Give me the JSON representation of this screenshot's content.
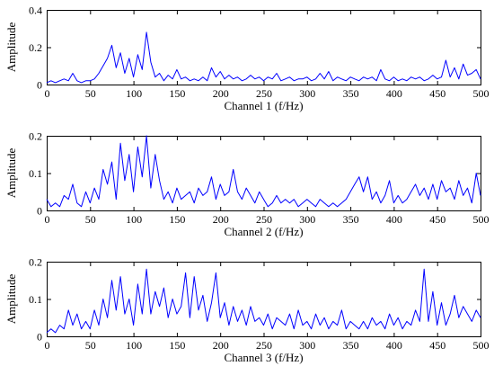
{
  "chart_data": [
    {
      "type": "line",
      "xlabel": "Channel 1 (f/Hz)",
      "ylabel": "Amplitude",
      "xlim": [
        0,
        500
      ],
      "ylim": [
        0,
        0.4
      ],
      "xticks": [
        0,
        50,
        100,
        150,
        200,
        250,
        300,
        350,
        400,
        450,
        500
      ],
      "yticks": [
        0,
        0.2,
        0.4
      ],
      "xtick_labels": [
        "0",
        "50",
        "100",
        "150",
        "200",
        "250",
        "300",
        "350",
        "400",
        "450",
        "500"
      ],
      "ytick_labels": [
        "0",
        "0.2",
        "0.4"
      ],
      "line_color": "#0000ff",
      "series": [
        {
          "x": [
            0,
            5,
            10,
            15,
            20,
            25,
            30,
            35,
            40,
            45,
            50,
            55,
            60,
            65,
            70,
            75,
            80,
            85,
            90,
            95,
            100,
            105,
            110,
            115,
            120,
            125,
            130,
            135,
            140,
            145,
            150,
            155,
            160,
            165,
            170,
            175,
            180,
            185,
            190,
            195,
            200,
            205,
            210,
            215,
            220,
            225,
            230,
            235,
            240,
            245,
            250,
            255,
            260,
            265,
            270,
            275,
            280,
            285,
            290,
            295,
            300,
            305,
            310,
            315,
            320,
            325,
            330,
            335,
            340,
            345,
            350,
            355,
            360,
            365,
            370,
            375,
            380,
            385,
            390,
            395,
            400,
            405,
            410,
            415,
            420,
            425,
            430,
            435,
            440,
            445,
            450,
            455,
            460,
            465,
            470,
            475,
            480,
            485,
            490,
            495,
            500
          ],
          "values": [
            0.01,
            0.02,
            0.01,
            0.02,
            0.03,
            0.02,
            0.06,
            0.02,
            0.01,
            0.02,
            0.02,
            0.03,
            0.06,
            0.1,
            0.14,
            0.21,
            0.09,
            0.17,
            0.06,
            0.14,
            0.04,
            0.16,
            0.08,
            0.28,
            0.12,
            0.04,
            0.06,
            0.02,
            0.05,
            0.03,
            0.08,
            0.03,
            0.04,
            0.02,
            0.03,
            0.02,
            0.04,
            0.02,
            0.09,
            0.04,
            0.07,
            0.03,
            0.05,
            0.03,
            0.04,
            0.02,
            0.03,
            0.05,
            0.03,
            0.04,
            0.02,
            0.04,
            0.03,
            0.06,
            0.02,
            0.03,
            0.04,
            0.02,
            0.03,
            0.03,
            0.04,
            0.02,
            0.03,
            0.06,
            0.03,
            0.07,
            0.02,
            0.04,
            0.03,
            0.02,
            0.04,
            0.03,
            0.02,
            0.04,
            0.03,
            0.04,
            0.02,
            0.08,
            0.03,
            0.02,
            0.04,
            0.02,
            0.03,
            0.02,
            0.04,
            0.03,
            0.04,
            0.02,
            0.03,
            0.05,
            0.03,
            0.04,
            0.13,
            0.04,
            0.09,
            0.03,
            0.11,
            0.05,
            0.06,
            0.08,
            0.03
          ]
        }
      ]
    },
    {
      "type": "line",
      "xlabel": "Channel 2 (f/Hz)",
      "ylabel": "Amplitude",
      "xlim": [
        0,
        500
      ],
      "ylim": [
        0,
        0.2
      ],
      "xticks": [
        0,
        50,
        100,
        150,
        200,
        250,
        300,
        350,
        400,
        450,
        500
      ],
      "yticks": [
        0,
        0.1,
        0.2
      ],
      "xtick_labels": [
        "0",
        "50",
        "100",
        "150",
        "200",
        "250",
        "300",
        "350",
        "400",
        "450",
        "500"
      ],
      "ytick_labels": [
        "0",
        "0.1",
        "0.2"
      ],
      "line_color": "#0000ff",
      "series": [
        {
          "x": [
            0,
            5,
            10,
            15,
            20,
            25,
            30,
            35,
            40,
            45,
            50,
            55,
            60,
            65,
            70,
            75,
            80,
            85,
            90,
            95,
            100,
            105,
            110,
            115,
            120,
            125,
            130,
            135,
            140,
            145,
            150,
            155,
            160,
            165,
            170,
            175,
            180,
            185,
            190,
            195,
            200,
            205,
            210,
            215,
            220,
            225,
            230,
            235,
            240,
            245,
            250,
            255,
            260,
            265,
            270,
            275,
            280,
            285,
            290,
            295,
            300,
            305,
            310,
            315,
            320,
            325,
            330,
            335,
            340,
            345,
            350,
            355,
            360,
            365,
            370,
            375,
            380,
            385,
            390,
            395,
            400,
            405,
            410,
            415,
            420,
            425,
            430,
            435,
            440,
            445,
            450,
            455,
            460,
            465,
            470,
            475,
            480,
            485,
            490,
            495,
            500
          ],
          "values": [
            0.03,
            0.01,
            0.02,
            0.01,
            0.04,
            0.03,
            0.07,
            0.02,
            0.01,
            0.05,
            0.02,
            0.06,
            0.03,
            0.11,
            0.07,
            0.13,
            0.03,
            0.18,
            0.08,
            0.15,
            0.05,
            0.17,
            0.09,
            0.2,
            0.06,
            0.15,
            0.08,
            0.03,
            0.05,
            0.02,
            0.06,
            0.03,
            0.04,
            0.05,
            0.02,
            0.06,
            0.04,
            0.05,
            0.09,
            0.03,
            0.07,
            0.04,
            0.05,
            0.11,
            0.05,
            0.03,
            0.06,
            0.04,
            0.02,
            0.05,
            0.03,
            0.01,
            0.02,
            0.04,
            0.02,
            0.03,
            0.02,
            0.03,
            0.01,
            0.02,
            0.03,
            0.02,
            0.01,
            0.03,
            0.02,
            0.01,
            0.02,
            0.01,
            0.02,
            0.03,
            0.05,
            0.07,
            0.09,
            0.05,
            0.09,
            0.03,
            0.05,
            0.02,
            0.04,
            0.08,
            0.02,
            0.04,
            0.02,
            0.03,
            0.05,
            0.07,
            0.04,
            0.06,
            0.03,
            0.07,
            0.03,
            0.08,
            0.05,
            0.06,
            0.03,
            0.08,
            0.04,
            0.06,
            0.02,
            0.1,
            0.04
          ]
        }
      ]
    },
    {
      "type": "line",
      "xlabel": "Channel 3 (f/Hz)",
      "ylabel": "Amplitude",
      "xlim": [
        0,
        500
      ],
      "ylim": [
        0,
        0.2
      ],
      "xticks": [
        0,
        50,
        100,
        150,
        200,
        250,
        300,
        350,
        400,
        450,
        500
      ],
      "yticks": [
        0,
        0.1,
        0.2
      ],
      "xtick_labels": [
        "0",
        "50",
        "100",
        "150",
        "200",
        "250",
        "300",
        "350",
        "400",
        "450",
        "500"
      ],
      "ytick_labels": [
        "0",
        "0.1",
        "0.2"
      ],
      "line_color": "#0000ff",
      "series": [
        {
          "x": [
            0,
            5,
            10,
            15,
            20,
            25,
            30,
            35,
            40,
            45,
            50,
            55,
            60,
            65,
            70,
            75,
            80,
            85,
            90,
            95,
            100,
            105,
            110,
            115,
            120,
            125,
            130,
            135,
            140,
            145,
            150,
            155,
            160,
            165,
            170,
            175,
            180,
            185,
            190,
            195,
            200,
            205,
            210,
            215,
            220,
            225,
            230,
            235,
            240,
            245,
            250,
            255,
            260,
            265,
            270,
            275,
            280,
            285,
            290,
            295,
            300,
            305,
            310,
            315,
            320,
            325,
            330,
            335,
            340,
            345,
            350,
            355,
            360,
            365,
            370,
            375,
            380,
            385,
            390,
            395,
            400,
            405,
            410,
            415,
            420,
            425,
            430,
            435,
            440,
            445,
            450,
            455,
            460,
            465,
            470,
            475,
            480,
            485,
            490,
            495,
            500
          ],
          "values": [
            0.01,
            0.02,
            0.01,
            0.03,
            0.02,
            0.07,
            0.03,
            0.06,
            0.02,
            0.04,
            0.02,
            0.07,
            0.03,
            0.1,
            0.05,
            0.15,
            0.07,
            0.16,
            0.06,
            0.1,
            0.03,
            0.14,
            0.06,
            0.18,
            0.06,
            0.12,
            0.08,
            0.13,
            0.05,
            0.1,
            0.06,
            0.08,
            0.17,
            0.05,
            0.16,
            0.07,
            0.11,
            0.04,
            0.09,
            0.17,
            0.05,
            0.09,
            0.03,
            0.08,
            0.04,
            0.07,
            0.03,
            0.08,
            0.04,
            0.05,
            0.03,
            0.06,
            0.02,
            0.05,
            0.04,
            0.03,
            0.06,
            0.02,
            0.07,
            0.03,
            0.04,
            0.02,
            0.06,
            0.03,
            0.05,
            0.02,
            0.04,
            0.03,
            0.07,
            0.02,
            0.04,
            0.03,
            0.02,
            0.04,
            0.02,
            0.05,
            0.03,
            0.04,
            0.02,
            0.06,
            0.03,
            0.05,
            0.02,
            0.04,
            0.03,
            0.07,
            0.04,
            0.18,
            0.04,
            0.12,
            0.03,
            0.09,
            0.03,
            0.06,
            0.11,
            0.05,
            0.08,
            0.06,
            0.04,
            0.07,
            0.05
          ]
        }
      ]
    }
  ]
}
